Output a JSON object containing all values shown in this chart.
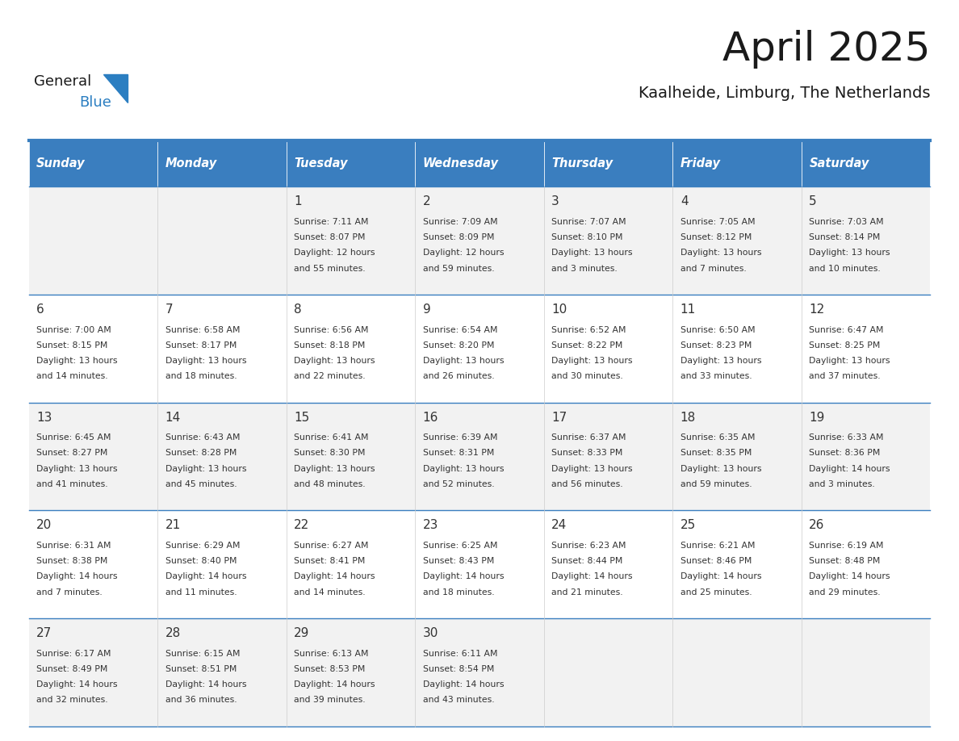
{
  "title": "April 2025",
  "subtitle": "Kaalheide, Limburg, The Netherlands",
  "header_color": "#3A7EBF",
  "header_text_color": "#FFFFFF",
  "border_color": "#3A7EBF",
  "text_color": "#333333",
  "days_of_week": [
    "Sunday",
    "Monday",
    "Tuesday",
    "Wednesday",
    "Thursday",
    "Friday",
    "Saturday"
  ],
  "weeks": [
    [
      {
        "day": null,
        "data": null
      },
      {
        "day": null,
        "data": null
      },
      {
        "day": 1,
        "data": {
          "sunrise": "7:11 AM",
          "sunset": "8:07 PM",
          "daylight": "12 hours and 55 minutes."
        }
      },
      {
        "day": 2,
        "data": {
          "sunrise": "7:09 AM",
          "sunset": "8:09 PM",
          "daylight": "12 hours and 59 minutes."
        }
      },
      {
        "day": 3,
        "data": {
          "sunrise": "7:07 AM",
          "sunset": "8:10 PM",
          "daylight": "13 hours and 3 minutes."
        }
      },
      {
        "day": 4,
        "data": {
          "sunrise": "7:05 AM",
          "sunset": "8:12 PM",
          "daylight": "13 hours and 7 minutes."
        }
      },
      {
        "day": 5,
        "data": {
          "sunrise": "7:03 AM",
          "sunset": "8:14 PM",
          "daylight": "13 hours and 10 minutes."
        }
      }
    ],
    [
      {
        "day": 6,
        "data": {
          "sunrise": "7:00 AM",
          "sunset": "8:15 PM",
          "daylight": "13 hours and 14 minutes."
        }
      },
      {
        "day": 7,
        "data": {
          "sunrise": "6:58 AM",
          "sunset": "8:17 PM",
          "daylight": "13 hours and 18 minutes."
        }
      },
      {
        "day": 8,
        "data": {
          "sunrise": "6:56 AM",
          "sunset": "8:18 PM",
          "daylight": "13 hours and 22 minutes."
        }
      },
      {
        "day": 9,
        "data": {
          "sunrise": "6:54 AM",
          "sunset": "8:20 PM",
          "daylight": "13 hours and 26 minutes."
        }
      },
      {
        "day": 10,
        "data": {
          "sunrise": "6:52 AM",
          "sunset": "8:22 PM",
          "daylight": "13 hours and 30 minutes."
        }
      },
      {
        "day": 11,
        "data": {
          "sunrise": "6:50 AM",
          "sunset": "8:23 PM",
          "daylight": "13 hours and 33 minutes."
        }
      },
      {
        "day": 12,
        "data": {
          "sunrise": "6:47 AM",
          "sunset": "8:25 PM",
          "daylight": "13 hours and 37 minutes."
        }
      }
    ],
    [
      {
        "day": 13,
        "data": {
          "sunrise": "6:45 AM",
          "sunset": "8:27 PM",
          "daylight": "13 hours and 41 minutes."
        }
      },
      {
        "day": 14,
        "data": {
          "sunrise": "6:43 AM",
          "sunset": "8:28 PM",
          "daylight": "13 hours and 45 minutes."
        }
      },
      {
        "day": 15,
        "data": {
          "sunrise": "6:41 AM",
          "sunset": "8:30 PM",
          "daylight": "13 hours and 48 minutes."
        }
      },
      {
        "day": 16,
        "data": {
          "sunrise": "6:39 AM",
          "sunset": "8:31 PM",
          "daylight": "13 hours and 52 minutes."
        }
      },
      {
        "day": 17,
        "data": {
          "sunrise": "6:37 AM",
          "sunset": "8:33 PM",
          "daylight": "13 hours and 56 minutes."
        }
      },
      {
        "day": 18,
        "data": {
          "sunrise": "6:35 AM",
          "sunset": "8:35 PM",
          "daylight": "13 hours and 59 minutes."
        }
      },
      {
        "day": 19,
        "data": {
          "sunrise": "6:33 AM",
          "sunset": "8:36 PM",
          "daylight": "14 hours and 3 minutes."
        }
      }
    ],
    [
      {
        "day": 20,
        "data": {
          "sunrise": "6:31 AM",
          "sunset": "8:38 PM",
          "daylight": "14 hours and 7 minutes."
        }
      },
      {
        "day": 21,
        "data": {
          "sunrise": "6:29 AM",
          "sunset": "8:40 PM",
          "daylight": "14 hours and 11 minutes."
        }
      },
      {
        "day": 22,
        "data": {
          "sunrise": "6:27 AM",
          "sunset": "8:41 PM",
          "daylight": "14 hours and 14 minutes."
        }
      },
      {
        "day": 23,
        "data": {
          "sunrise": "6:25 AM",
          "sunset": "8:43 PM",
          "daylight": "14 hours and 18 minutes."
        }
      },
      {
        "day": 24,
        "data": {
          "sunrise": "6:23 AM",
          "sunset": "8:44 PM",
          "daylight": "14 hours and 21 minutes."
        }
      },
      {
        "day": 25,
        "data": {
          "sunrise": "6:21 AM",
          "sunset": "8:46 PM",
          "daylight": "14 hours and 25 minutes."
        }
      },
      {
        "day": 26,
        "data": {
          "sunrise": "6:19 AM",
          "sunset": "8:48 PM",
          "daylight": "14 hours and 29 minutes."
        }
      }
    ],
    [
      {
        "day": 27,
        "data": {
          "sunrise": "6:17 AM",
          "sunset": "8:49 PM",
          "daylight": "14 hours and 32 minutes."
        }
      },
      {
        "day": 28,
        "data": {
          "sunrise": "6:15 AM",
          "sunset": "8:51 PM",
          "daylight": "14 hours and 36 minutes."
        }
      },
      {
        "day": 29,
        "data": {
          "sunrise": "6:13 AM",
          "sunset": "8:53 PM",
          "daylight": "14 hours and 39 minutes."
        }
      },
      {
        "day": 30,
        "data": {
          "sunrise": "6:11 AM",
          "sunset": "8:54 PM",
          "daylight": "14 hours and 43 minutes."
        }
      },
      {
        "day": null,
        "data": null
      },
      {
        "day": null,
        "data": null
      },
      {
        "day": null,
        "data": null
      }
    ]
  ]
}
